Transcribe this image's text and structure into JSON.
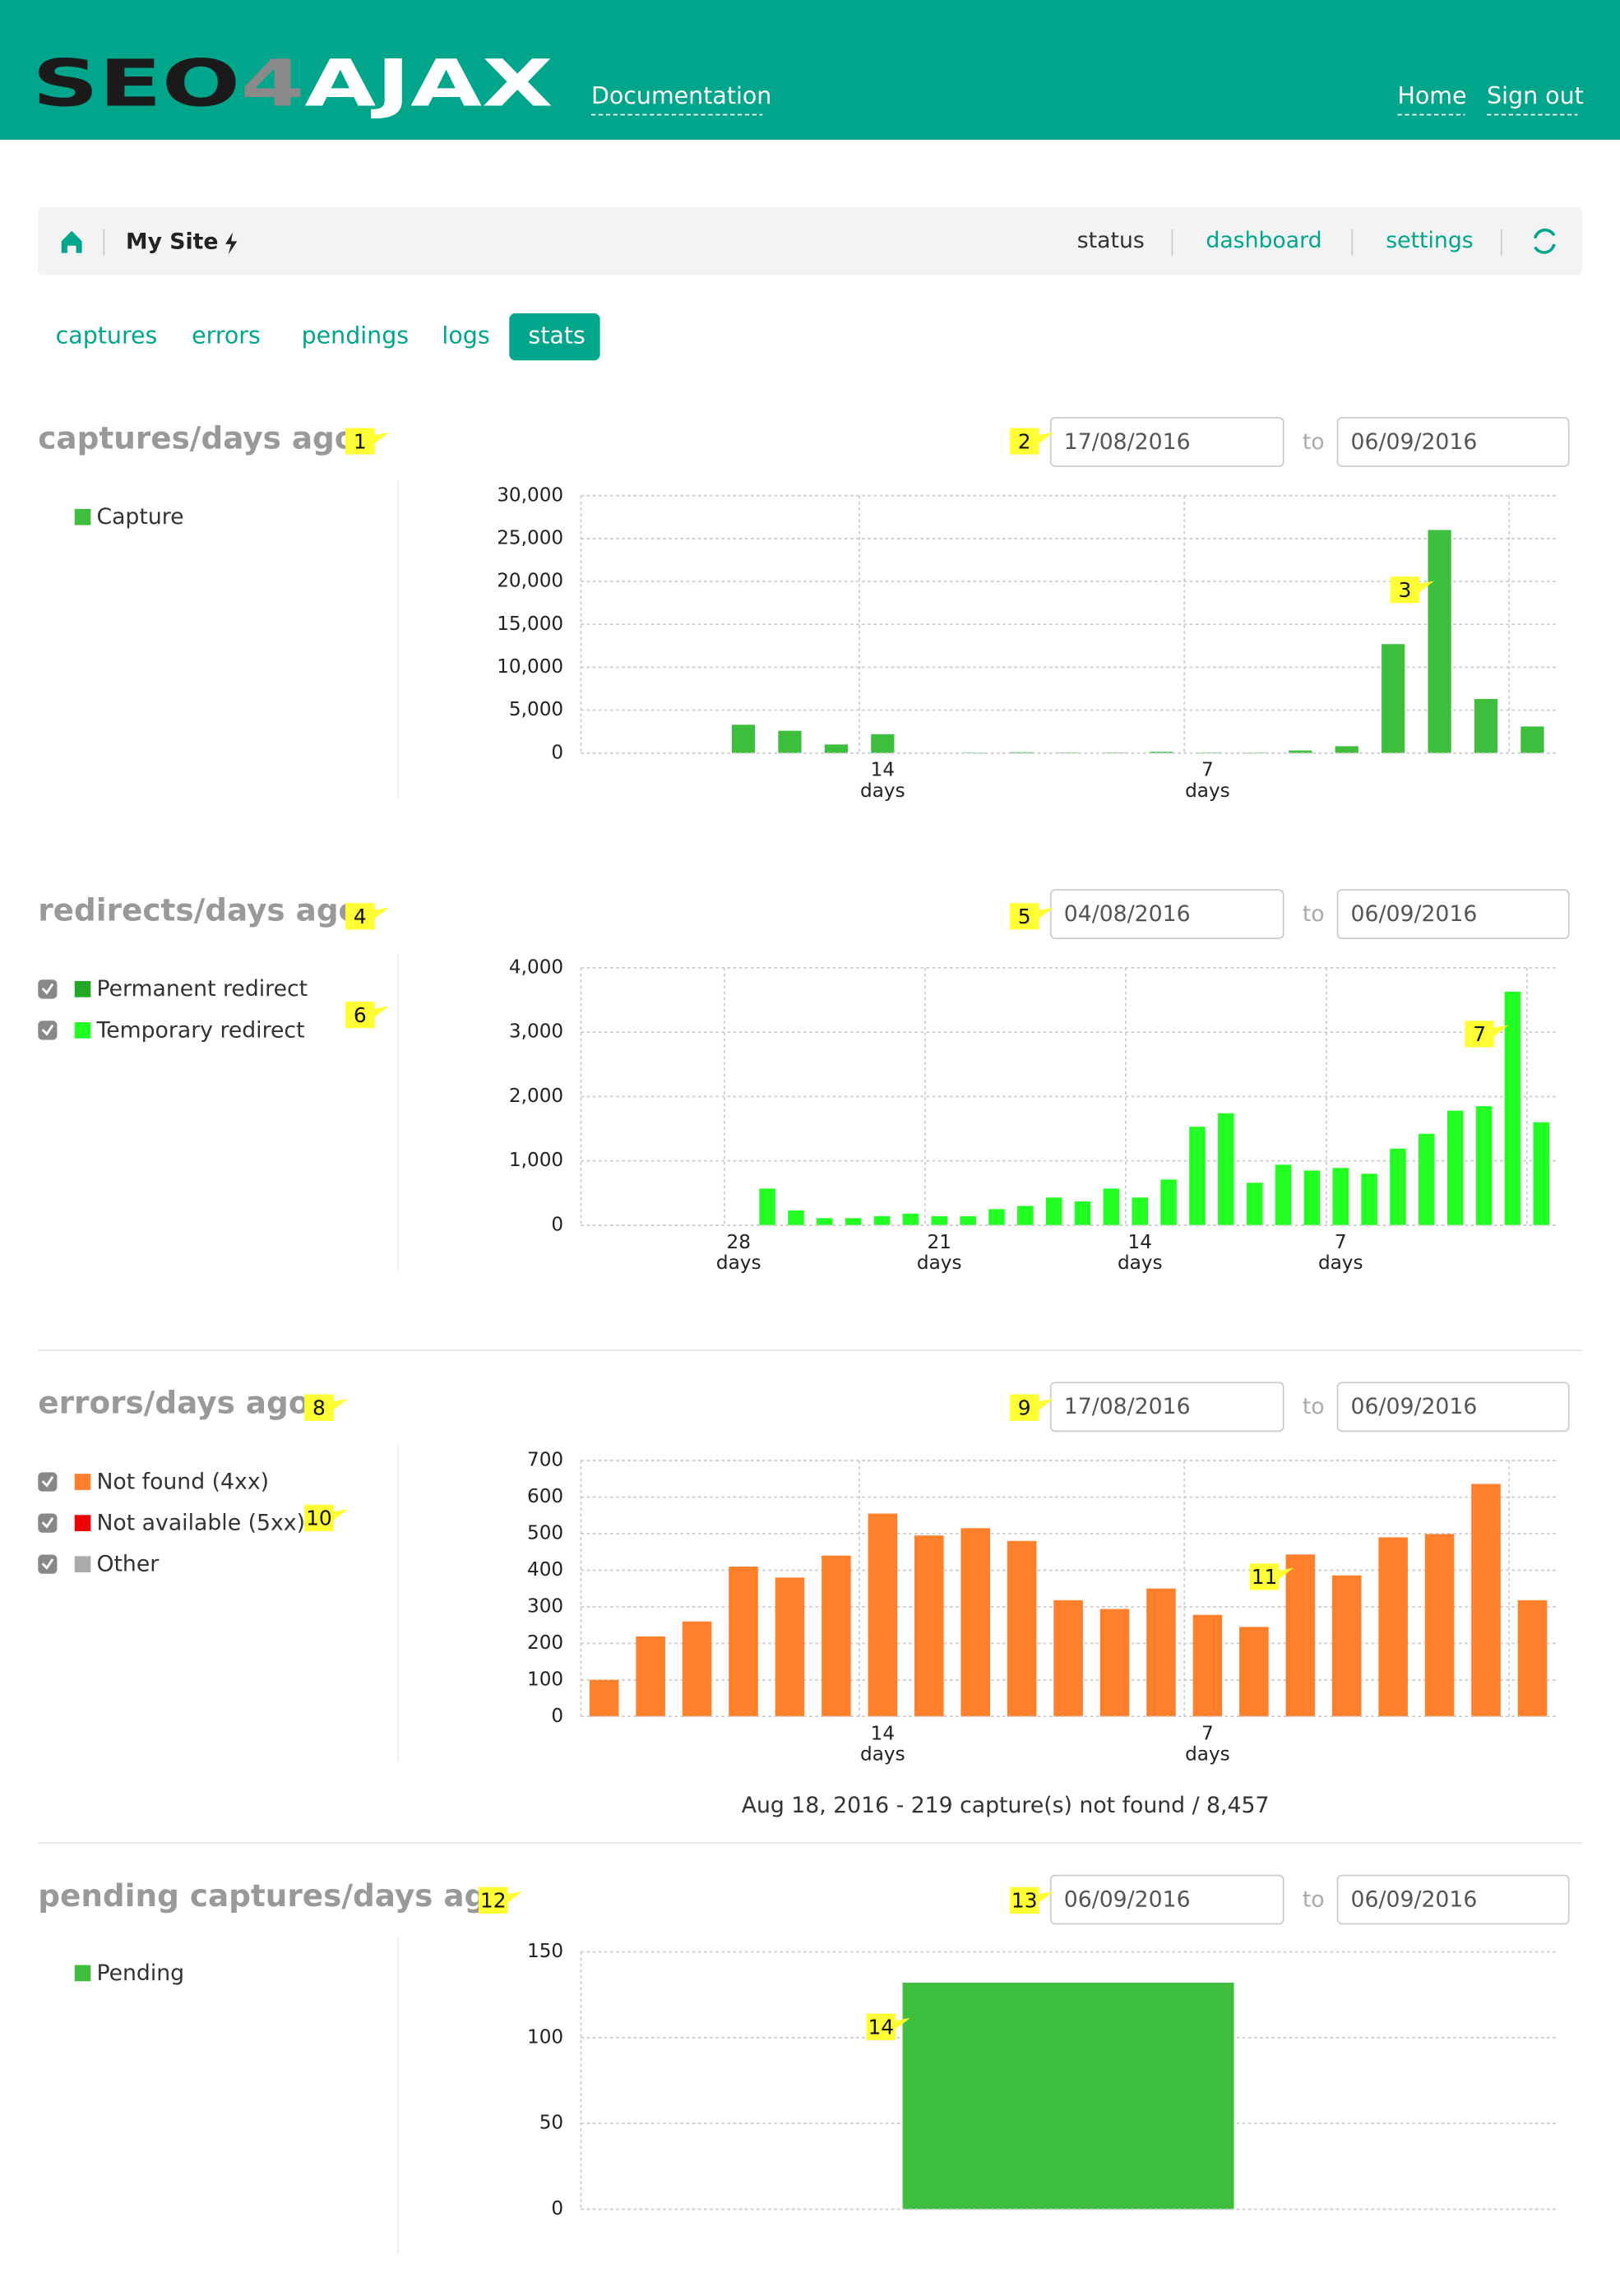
{
  "header": {
    "logo": [
      "SEO",
      "4",
      "AJAX"
    ],
    "nav_left": "Documentation",
    "nav_right": [
      "Home",
      "Sign out"
    ]
  },
  "toolbar": {
    "site": "My Site",
    "links": [
      "status",
      "dashboard",
      "settings"
    ]
  },
  "tabs": {
    "items": [
      "captures",
      "errors",
      "pendings",
      "logs",
      "stats"
    ],
    "active_index": 4
  },
  "chart_data": [
    {
      "type": "bar",
      "title": "captures/days ago",
      "date_from": "17/08/2016",
      "date_separator": "to",
      "date_to": "06/09/2016",
      "markers": [
        "1",
        "2",
        "3"
      ],
      "category_suffix": "days",
      "legend_checkboxes": false,
      "stacked": false,
      "grid": true,
      "categories": [
        null,
        null,
        null,
        null,
        null,
        null,
        "14",
        null,
        null,
        null,
        null,
        null,
        null,
        "7",
        null,
        null,
        null,
        null,
        null,
        null,
        null
      ],
      "series": [
        {
          "name": "Capture",
          "color": "#3dbf3d",
          "values": [
            0,
            0,
            0,
            3300,
            2600,
            1000,
            2200,
            0,
            50,
            100,
            50,
            50,
            150,
            50,
            50,
            300,
            800,
            12700,
            26000,
            6300,
            3100
          ]
        }
      ],
      "ylim": [
        0,
        30000
      ],
      "yticks": [
        0,
        {
          "value": 5000,
          "label": "5,000"
        },
        {
          "value": 10000,
          "label": "10,000"
        },
        {
          "value": 15000,
          "label": "15,000"
        },
        {
          "value": 20000,
          "label": "20,000"
        },
        {
          "value": 25000,
          "label": "25,000"
        },
        {
          "value": 30000,
          "label": "30,000"
        }
      ]
    },
    {
      "type": "bar",
      "title": "redirects/days ago",
      "date_from": "04/08/2016",
      "date_separator": "to",
      "date_to": "06/09/2016",
      "markers": [
        "4",
        "5",
        "6",
        "7"
      ],
      "category_suffix": "days",
      "legend_checkboxes": true,
      "stacked": true,
      "grid": true,
      "categories": [
        null,
        null,
        null,
        null,
        null,
        "28",
        null,
        null,
        null,
        null,
        null,
        null,
        "21",
        null,
        null,
        null,
        null,
        null,
        null,
        "14",
        null,
        null,
        null,
        null,
        null,
        null,
        "7",
        null,
        null,
        null,
        null,
        null,
        null,
        null
      ],
      "series": [
        {
          "name": "Permanent redirect",
          "color": "#22a822",
          "values": [
            0,
            0,
            0,
            0,
            0,
            0,
            0,
            0,
            0,
            0,
            0,
            0,
            0,
            0,
            0,
            0,
            0,
            0,
            0,
            0,
            0,
            0,
            0,
            0,
            0,
            0,
            0,
            0,
            0,
            0,
            0,
            0,
            0,
            0
          ]
        },
        {
          "name": "Temporary redirect",
          "color": "#22ff22",
          "values": [
            0,
            0,
            0,
            0,
            0,
            0,
            570,
            230,
            110,
            110,
            140,
            180,
            140,
            140,
            250,
            300,
            430,
            370,
            570,
            430,
            710,
            1530,
            1740,
            660,
            940,
            850,
            890,
            800,
            1190,
            1420,
            1780,
            1850,
            3630,
            1600
          ]
        }
      ],
      "ylim": [
        0,
        4000
      ],
      "yticks": [
        0,
        {
          "value": 1000,
          "label": "1,000"
        },
        {
          "value": 2000,
          "label": "2,000"
        },
        {
          "value": 3000,
          "label": "3,000"
        },
        {
          "value": 4000,
          "label": "4,000"
        }
      ]
    },
    {
      "type": "bar",
      "title": "errors/days ago",
      "date_from": "17/08/2016",
      "date_separator": "to",
      "date_to": "06/09/2016",
      "markers": [
        "8",
        "9",
        "10",
        "11"
      ],
      "category_suffix": "days",
      "legend_checkboxes": true,
      "stacked": true,
      "grid": true,
      "tooltip": "Aug 18, 2016 - 219 capture(s) not found / 8,457",
      "categories": [
        null,
        null,
        null,
        null,
        null,
        null,
        "14",
        null,
        null,
        null,
        null,
        null,
        null,
        "7",
        null,
        null,
        null,
        null,
        null,
        null,
        null
      ],
      "series": [
        {
          "name": "Not found (4xx)",
          "color": "#ff7f2a",
          "values": [
            100,
            219,
            260,
            410,
            380,
            440,
            555,
            495,
            515,
            480,
            318,
            294,
            350,
            278,
            245,
            443,
            386,
            490,
            499,
            636,
            318
          ]
        },
        {
          "name": "Not available (5xx)",
          "color": "#ee0000",
          "values": [
            0,
            0,
            0,
            0,
            0,
            0,
            0,
            0,
            0,
            0,
            0,
            0,
            0,
            0,
            0,
            0,
            0,
            0,
            0,
            0,
            0
          ]
        },
        {
          "name": "Other",
          "color": "#aaaaaa",
          "values": [
            0,
            0,
            0,
            0,
            0,
            0,
            0,
            0,
            0,
            0,
            0,
            0,
            0,
            0,
            0,
            0,
            0,
            0,
            0,
            0,
            0
          ]
        }
      ],
      "ylim": [
        0,
        700
      ],
      "yticks": [
        0,
        100,
        200,
        300,
        400,
        500,
        600,
        700
      ]
    },
    {
      "type": "bar",
      "title": "pending captures/days ago",
      "date_from": "06/09/2016",
      "date_separator": "to",
      "date_to": "06/09/2016",
      "markers": [
        "12",
        "13",
        "14"
      ],
      "legend_checkboxes": false,
      "stacked": false,
      "grid": true,
      "categories": [
        null
      ],
      "series": [
        {
          "name": "Pending",
          "color": "#3dbf3d",
          "values": [
            132
          ]
        }
      ],
      "ylim": [
        0,
        150
      ],
      "yticks": [
        0,
        50,
        100,
        150
      ]
    }
  ]
}
